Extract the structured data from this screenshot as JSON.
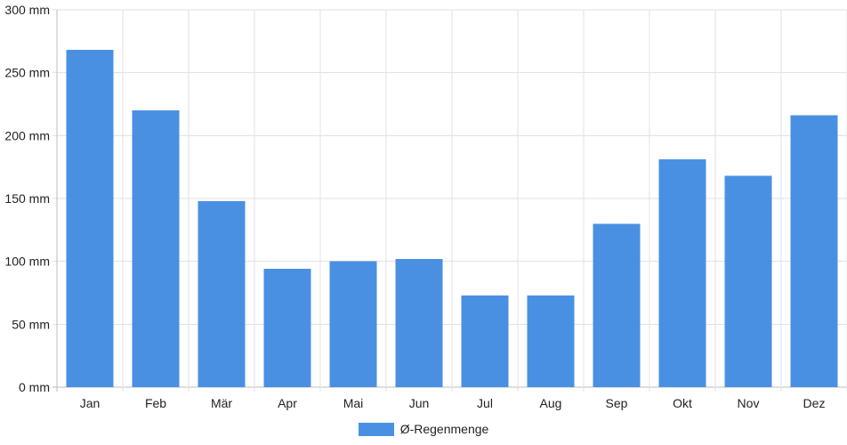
{
  "chart_data": {
    "type": "bar",
    "categories": [
      "Jan",
      "Feb",
      "Mär",
      "Apr",
      "Mai",
      "Jun",
      "Jul",
      "Aug",
      "Sep",
      "Okt",
      "Nov",
      "Dez"
    ],
    "series": [
      {
        "name": "Ø-Regenmenge",
        "values": [
          268,
          220,
          148,
          94,
          100,
          102,
          73,
          73,
          130,
          181,
          168,
          216
        ],
        "color": "#4a90e2"
      }
    ],
    "y_ticks": [
      "0 mm",
      "50 mm",
      "100 mm",
      "150 mm",
      "200 mm",
      "250 mm",
      "300 mm"
    ],
    "ylim": [
      0,
      300
    ],
    "y_unit": "mm",
    "grid": true,
    "legend_position": "bottom-center"
  }
}
